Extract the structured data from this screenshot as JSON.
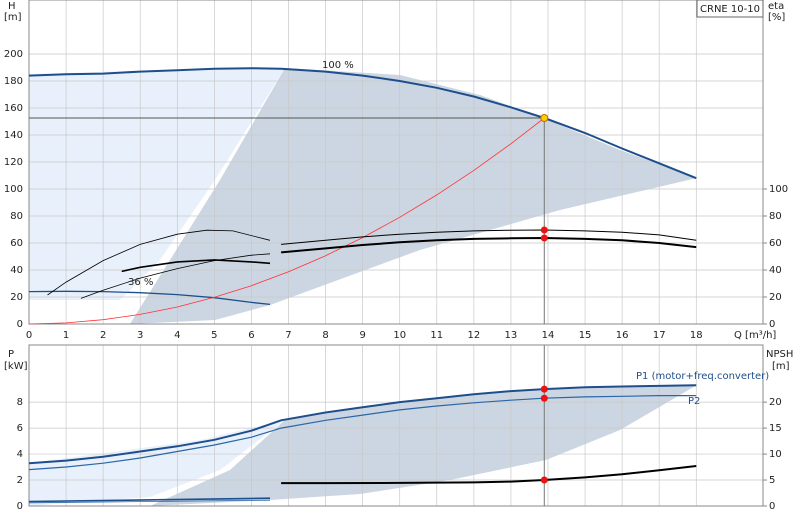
{
  "chart_data": [
    {
      "type": "line",
      "ylabel": "H",
      "yunit": "[m]",
      "y2label": "eta",
      "y2unit": "[%]",
      "xlabel": "Q [m³/h]",
      "model": "CRNE 10-10",
      "xlim": [
        0,
        19.8
      ],
      "xticks": [
        0,
        1,
        2,
        3,
        4,
        5,
        6,
        7,
        8,
        9,
        10,
        11,
        12,
        13,
        14,
        15,
        16,
        17,
        18
      ],
      "ylim": [
        0,
        240
      ],
      "yticks": [
        0,
        20,
        40,
        60,
        80,
        100,
        120,
        140,
        160,
        180,
        200
      ],
      "y2lim": [
        0,
        240
      ],
      "y2ticks": [
        0,
        20,
        40,
        60,
        80,
        100
      ],
      "grid": true,
      "duty_point": {
        "x": 13.9,
        "y": 152.6
      },
      "series": [
        {
          "name": "100 %",
          "color": "#1f4e8c",
          "width": 2,
          "x": [
            0,
            1,
            2,
            3,
            4,
            5,
            6,
            6.8,
            8,
            9,
            10,
            11,
            12,
            13,
            13.9,
            15,
            16,
            17,
            18
          ],
          "values": [
            184,
            185,
            185.5,
            187,
            188,
            189,
            189.5,
            189,
            187,
            184,
            180,
            175,
            168.5,
            160.5,
            152.6,
            141.5,
            130,
            119,
            108
          ]
        },
        {
          "name": "36 %",
          "color": "#1f4e8c",
          "width": 1.3,
          "x": [
            0,
            1,
            2,
            3,
            4,
            5,
            6,
            6.5
          ],
          "values": [
            24,
            24.2,
            24,
            23.2,
            21.8,
            19.5,
            16,
            14.5
          ]
        },
        {
          "color": "#ff3333",
          "width": 0.8,
          "x": [
            0,
            1,
            2,
            3,
            4,
            5,
            6,
            7,
            8,
            9,
            10,
            11,
            12,
            13,
            13.9
          ],
          "values": [
            0,
            0.8,
            3.2,
            7.1,
            12.6,
            19.8,
            28.4,
            38.7,
            50.6,
            64,
            79,
            95.6,
            113.8,
            133.5,
            152.6
          ]
        },
        {
          "color": "#000000",
          "width": 2,
          "axis": "y2",
          "x": [
            6.8,
            8,
            9,
            10,
            11,
            12,
            13,
            13.9,
            15,
            16,
            17,
            18
          ],
          "values": [
            53,
            56,
            58.5,
            60.5,
            62,
            63,
            63.5,
            63.7,
            63,
            62,
            60,
            57
          ]
        },
        {
          "color": "#000000",
          "width": 1,
          "axis": "y2",
          "x": [
            6.8,
            8,
            9,
            10,
            11,
            12,
            13,
            13.9,
            15,
            16,
            17,
            18
          ],
          "values": [
            59,
            62,
            64.5,
            66.5,
            68,
            69,
            69.5,
            69.6,
            69,
            68,
            66,
            62
          ]
        },
        {
          "color": "#000000",
          "width": 0.8,
          "axis": "y2",
          "x": [
            0.5,
            1,
            2,
            3,
            4,
            4.8,
            5.5,
            6.5
          ],
          "values": [
            21.5,
            31,
            47,
            59,
            66.5,
            69.5,
            69,
            62
          ]
        },
        {
          "color": "#000000",
          "width": 0.8,
          "axis": "y2",
          "x": [
            1.4,
            2,
            3,
            4,
            5,
            6,
            6.5
          ],
          "values": [
            19,
            25,
            34,
            41,
            47,
            51,
            52
          ]
        },
        {
          "color": "#000000",
          "width": 1.6,
          "axis": "y2",
          "x": [
            2.5,
            3,
            4,
            5,
            6,
            6.5
          ],
          "values": [
            39,
            42,
            46,
            47.5,
            46,
            45
          ]
        },
        {
          "color": "#ffcc00",
          "style": "marker",
          "x": [
            13.9
          ],
          "values": [
            152.6
          ]
        },
        {
          "color": "#ee1111",
          "style": "marker",
          "axis": "y2",
          "x": [
            13.9
          ],
          "values": [
            69.6
          ]
        },
        {
          "color": "#ee1111",
          "style": "marker",
          "axis": "y2",
          "x": [
            13.9
          ],
          "values": [
            63.7
          ]
        }
      ]
    },
    {
      "type": "line",
      "ylabel": "P",
      "yunit": "[kW]",
      "y2label": "NPSH",
      "y2unit": "[m]",
      "xlim": [
        0,
        19.8
      ],
      "ylim": [
        0,
        12.4
      ],
      "yticks": [
        0,
        2,
        4,
        6,
        8
      ],
      "y2lim": [
        0,
        31
      ],
      "y2ticks": [
        0,
        5,
        10,
        15,
        20
      ],
      "grid": true,
      "duty_point": {
        "x": 13.9
      },
      "series": [
        {
          "name": "P1 (motor+freq.converter)",
          "color": "#1f4e8c",
          "width": 2,
          "x": [
            0,
            1,
            2,
            3,
            4,
            5,
            6,
            6.8,
            8,
            9,
            10,
            11,
            12,
            13,
            13.9,
            15,
            16,
            17,
            18
          ],
          "values": [
            3.3,
            3.5,
            3.8,
            4.2,
            4.6,
            5.1,
            5.8,
            6.6,
            7.2,
            7.6,
            8.0,
            8.3,
            8.6,
            8.85,
            9.0,
            9.15,
            9.2,
            9.25,
            9.3
          ]
        },
        {
          "name": "P2",
          "color": "#2a66a8",
          "width": 1.2,
          "x": [
            0,
            1,
            2,
            3,
            4,
            5,
            6,
            6.8,
            8,
            9,
            10,
            11,
            12,
            13,
            13.9,
            15,
            16,
            17,
            18
          ],
          "values": [
            2.8,
            3.0,
            3.3,
            3.7,
            4.2,
            4.7,
            5.3,
            6.0,
            6.6,
            7.0,
            7.4,
            7.7,
            7.95,
            8.15,
            8.3,
            8.4,
            8.45,
            8.5,
            8.5
          ]
        },
        {
          "color": "#1f4e8c",
          "width": 1.6,
          "x": [
            0,
            6.5
          ],
          "values": [
            0.35,
            0.6
          ]
        },
        {
          "color": "#2a66a8",
          "width": 0.8,
          "x": [
            0,
            6.5
          ],
          "values": [
            0.25,
            0.45
          ]
        },
        {
          "color": "#000000",
          "width": 2,
          "axis": "y2",
          "x": [
            6.8,
            8,
            10,
            12,
            13,
            13.9,
            15,
            16,
            17,
            18
          ],
          "values": [
            4.4,
            4.4,
            4.45,
            4.55,
            4.7,
            5.0,
            5.5,
            6.1,
            6.9,
            7.7
          ]
        },
        {
          "color": "#ee1111",
          "style": "marker",
          "x": [
            13.9
          ],
          "values": [
            9.0
          ]
        },
        {
          "color": "#ee1111",
          "style": "marker",
          "x": [
            13.9
          ],
          "values": [
            8.3
          ]
        },
        {
          "color": "#ee1111",
          "style": "marker",
          "axis": "y2",
          "x": [
            13.9
          ],
          "values": [
            5.0
          ]
        }
      ]
    }
  ]
}
